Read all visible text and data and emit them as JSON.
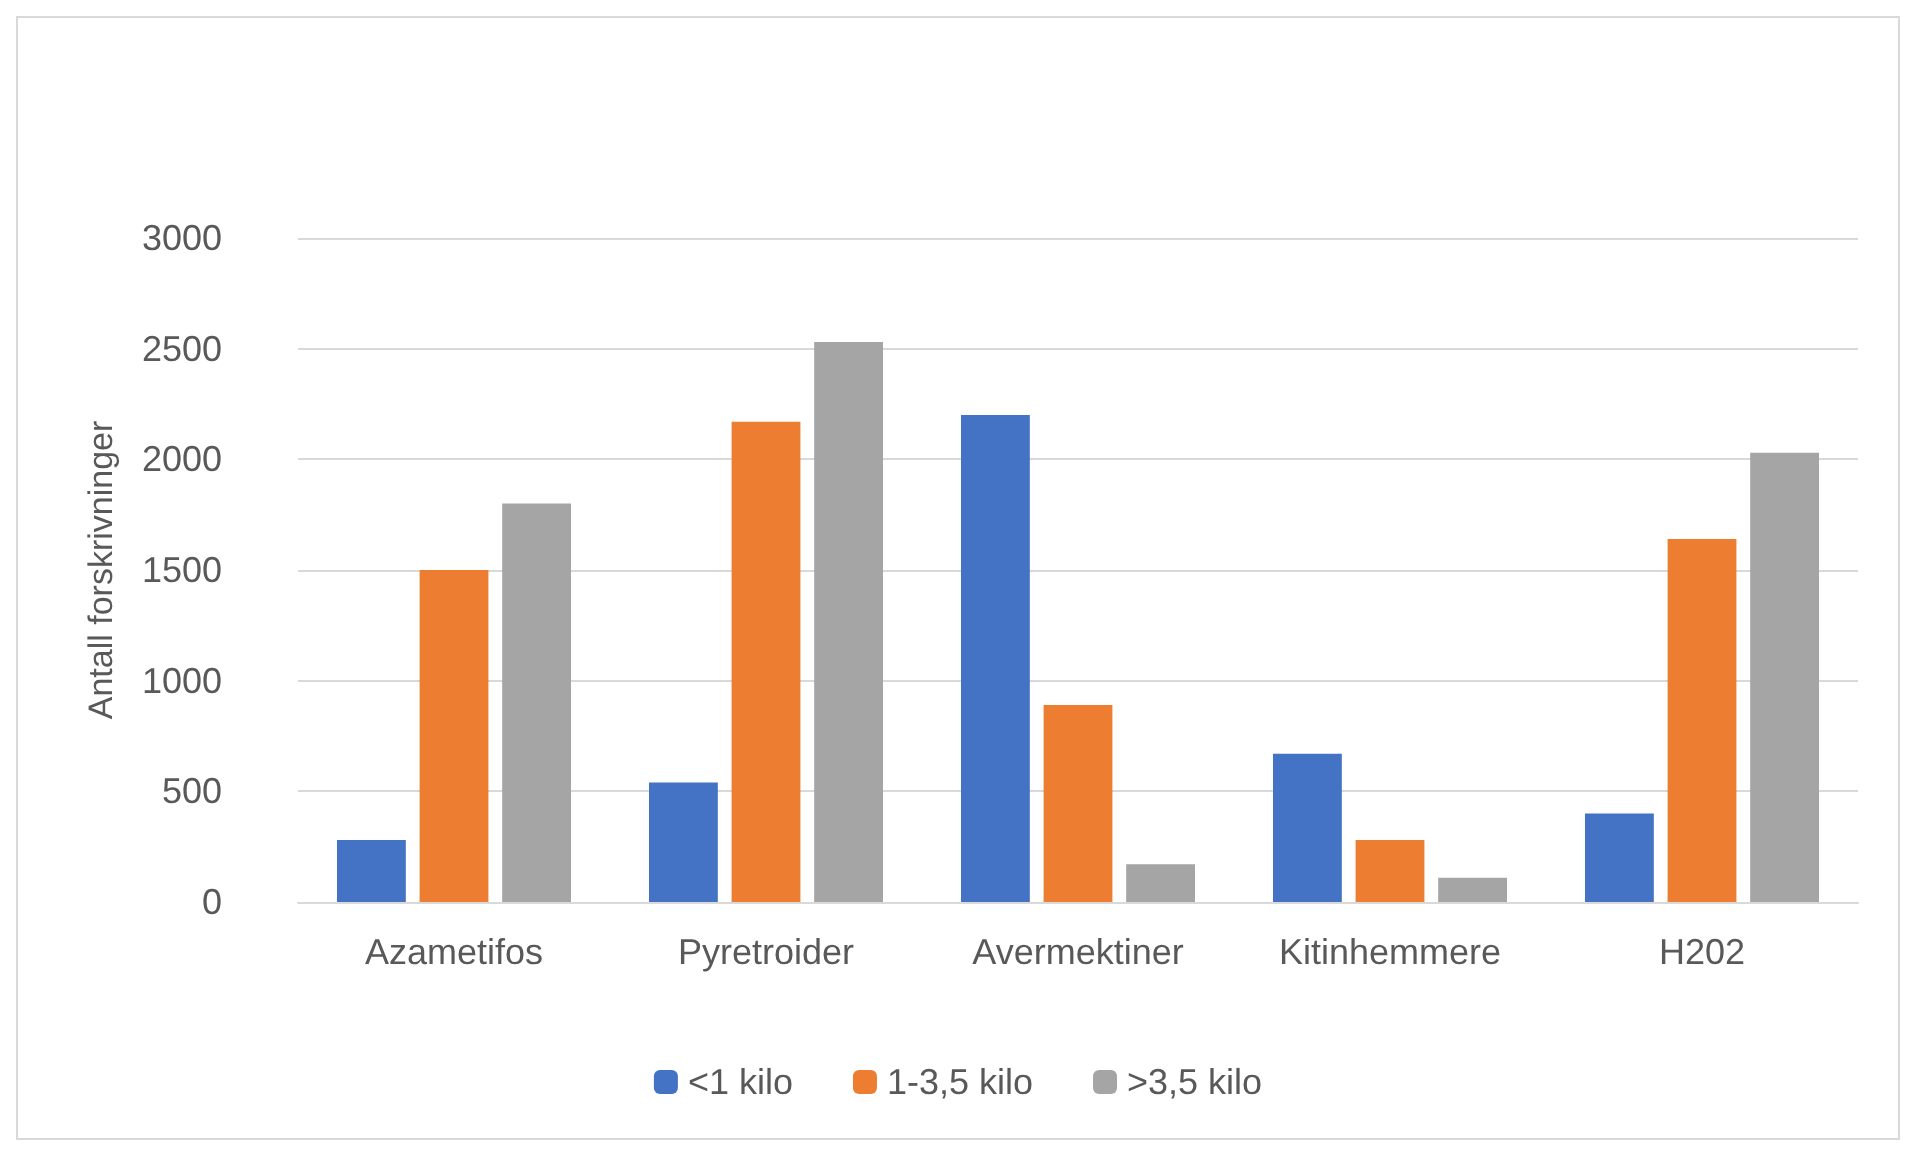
{
  "chart_data": {
    "type": "bar",
    "ylabel": "Antall forskrivninger",
    "categories": [
      "Azametifos",
      "Pyretroider",
      "Avermektiner",
      "Kitinhemmere",
      "H202"
    ],
    "series": [
      {
        "name": "<1 kilo",
        "color": "#4472c4",
        "values": [
          280,
          540,
          2200,
          670,
          400
        ]
      },
      {
        "name": "1-3,5 kilo",
        "color": "#ed7d31",
        "values": [
          1500,
          2170,
          890,
          280,
          1640
        ]
      },
      {
        "name": ">3,5 kilo",
        "color": "#a5a5a5",
        "values": [
          1800,
          2530,
          170,
          110,
          2030
        ]
      }
    ],
    "ylim": [
      0,
      3000
    ],
    "yticks": [
      0,
      500,
      1000,
      1500,
      2000,
      2500,
      3000
    ],
    "grid": "y",
    "legend": "bottom"
  }
}
